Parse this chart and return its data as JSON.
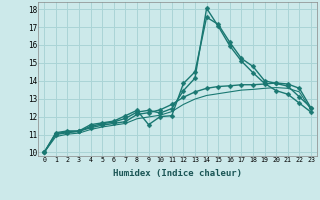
{
  "background_color": "#cce9ea",
  "grid_color": "#aad4d6",
  "line_color": "#1a7872",
  "x_label": "Humidex (Indice chaleur)",
  "ylim": [
    9.8,
    18.4
  ],
  "xlim": [
    -0.5,
    23.5
  ],
  "yticks": [
    10,
    11,
    12,
    13,
    14,
    15,
    16,
    17,
    18
  ],
  "xticks": [
    0,
    1,
    2,
    3,
    4,
    5,
    6,
    7,
    8,
    9,
    10,
    11,
    12,
    13,
    14,
    15,
    16,
    17,
    18,
    19,
    20,
    21,
    22,
    23
  ],
  "series": [
    {
      "x": [
        0,
        1,
        2,
        3,
        4,
        5,
        6,
        7,
        8,
        9,
        10,
        11,
        12,
        13,
        14,
        15,
        16,
        17,
        18,
        19,
        20,
        21,
        22,
        23
      ],
      "y": [
        10.0,
        11.1,
        11.2,
        11.2,
        11.55,
        11.65,
        11.75,
        12.05,
        12.35,
        11.55,
        12.0,
        12.05,
        13.85,
        14.5,
        17.55,
        17.15,
        16.15,
        15.25,
        14.8,
        14.0,
        13.85,
        13.7,
        13.1,
        12.5
      ],
      "marker": "D",
      "markersize": 2.5,
      "linewidth": 1.0
    },
    {
      "x": [
        0,
        1,
        2,
        3,
        4,
        5,
        6,
        7,
        8,
        9,
        10,
        11,
        12,
        13,
        14,
        15,
        16,
        17,
        18,
        19,
        20,
        21,
        22,
        23
      ],
      "y": [
        10.0,
        11.05,
        11.15,
        11.18,
        11.45,
        11.6,
        11.7,
        11.9,
        12.25,
        12.35,
        12.2,
        12.45,
        13.45,
        14.15,
        18.05,
        17.05,
        15.95,
        15.1,
        14.45,
        13.85,
        13.45,
        13.25,
        12.75,
        12.25
      ],
      "marker": "D",
      "markersize": 2.5,
      "linewidth": 1.0
    },
    {
      "x": [
        0,
        1,
        2,
        3,
        4,
        5,
        6,
        7,
        8,
        9,
        10,
        11,
        12,
        13,
        14,
        15,
        16,
        17,
        18,
        19,
        20,
        21,
        22,
        23
      ],
      "y": [
        10.0,
        11.0,
        11.1,
        11.18,
        11.38,
        11.52,
        11.62,
        11.72,
        12.12,
        12.22,
        12.38,
        12.68,
        13.08,
        13.38,
        13.58,
        13.68,
        13.72,
        13.78,
        13.78,
        13.82,
        13.88,
        13.82,
        13.58,
        12.48
      ],
      "marker": "D",
      "markersize": 2.5,
      "linewidth": 1.0
    },
    {
      "x": [
        0,
        1,
        2,
        3,
        4,
        5,
        6,
        7,
        8,
        9,
        10,
        11,
        12,
        13,
        14,
        15,
        16,
        17,
        18,
        19,
        20,
        21,
        22,
        23
      ],
      "y": [
        10.0,
        10.88,
        11.02,
        11.08,
        11.28,
        11.42,
        11.52,
        11.62,
        11.88,
        11.98,
        12.08,
        12.28,
        12.68,
        12.98,
        13.18,
        13.28,
        13.38,
        13.48,
        13.52,
        13.58,
        13.62,
        13.58,
        13.38,
        12.38
      ],
      "marker": null,
      "markersize": 0,
      "linewidth": 0.8
    }
  ]
}
